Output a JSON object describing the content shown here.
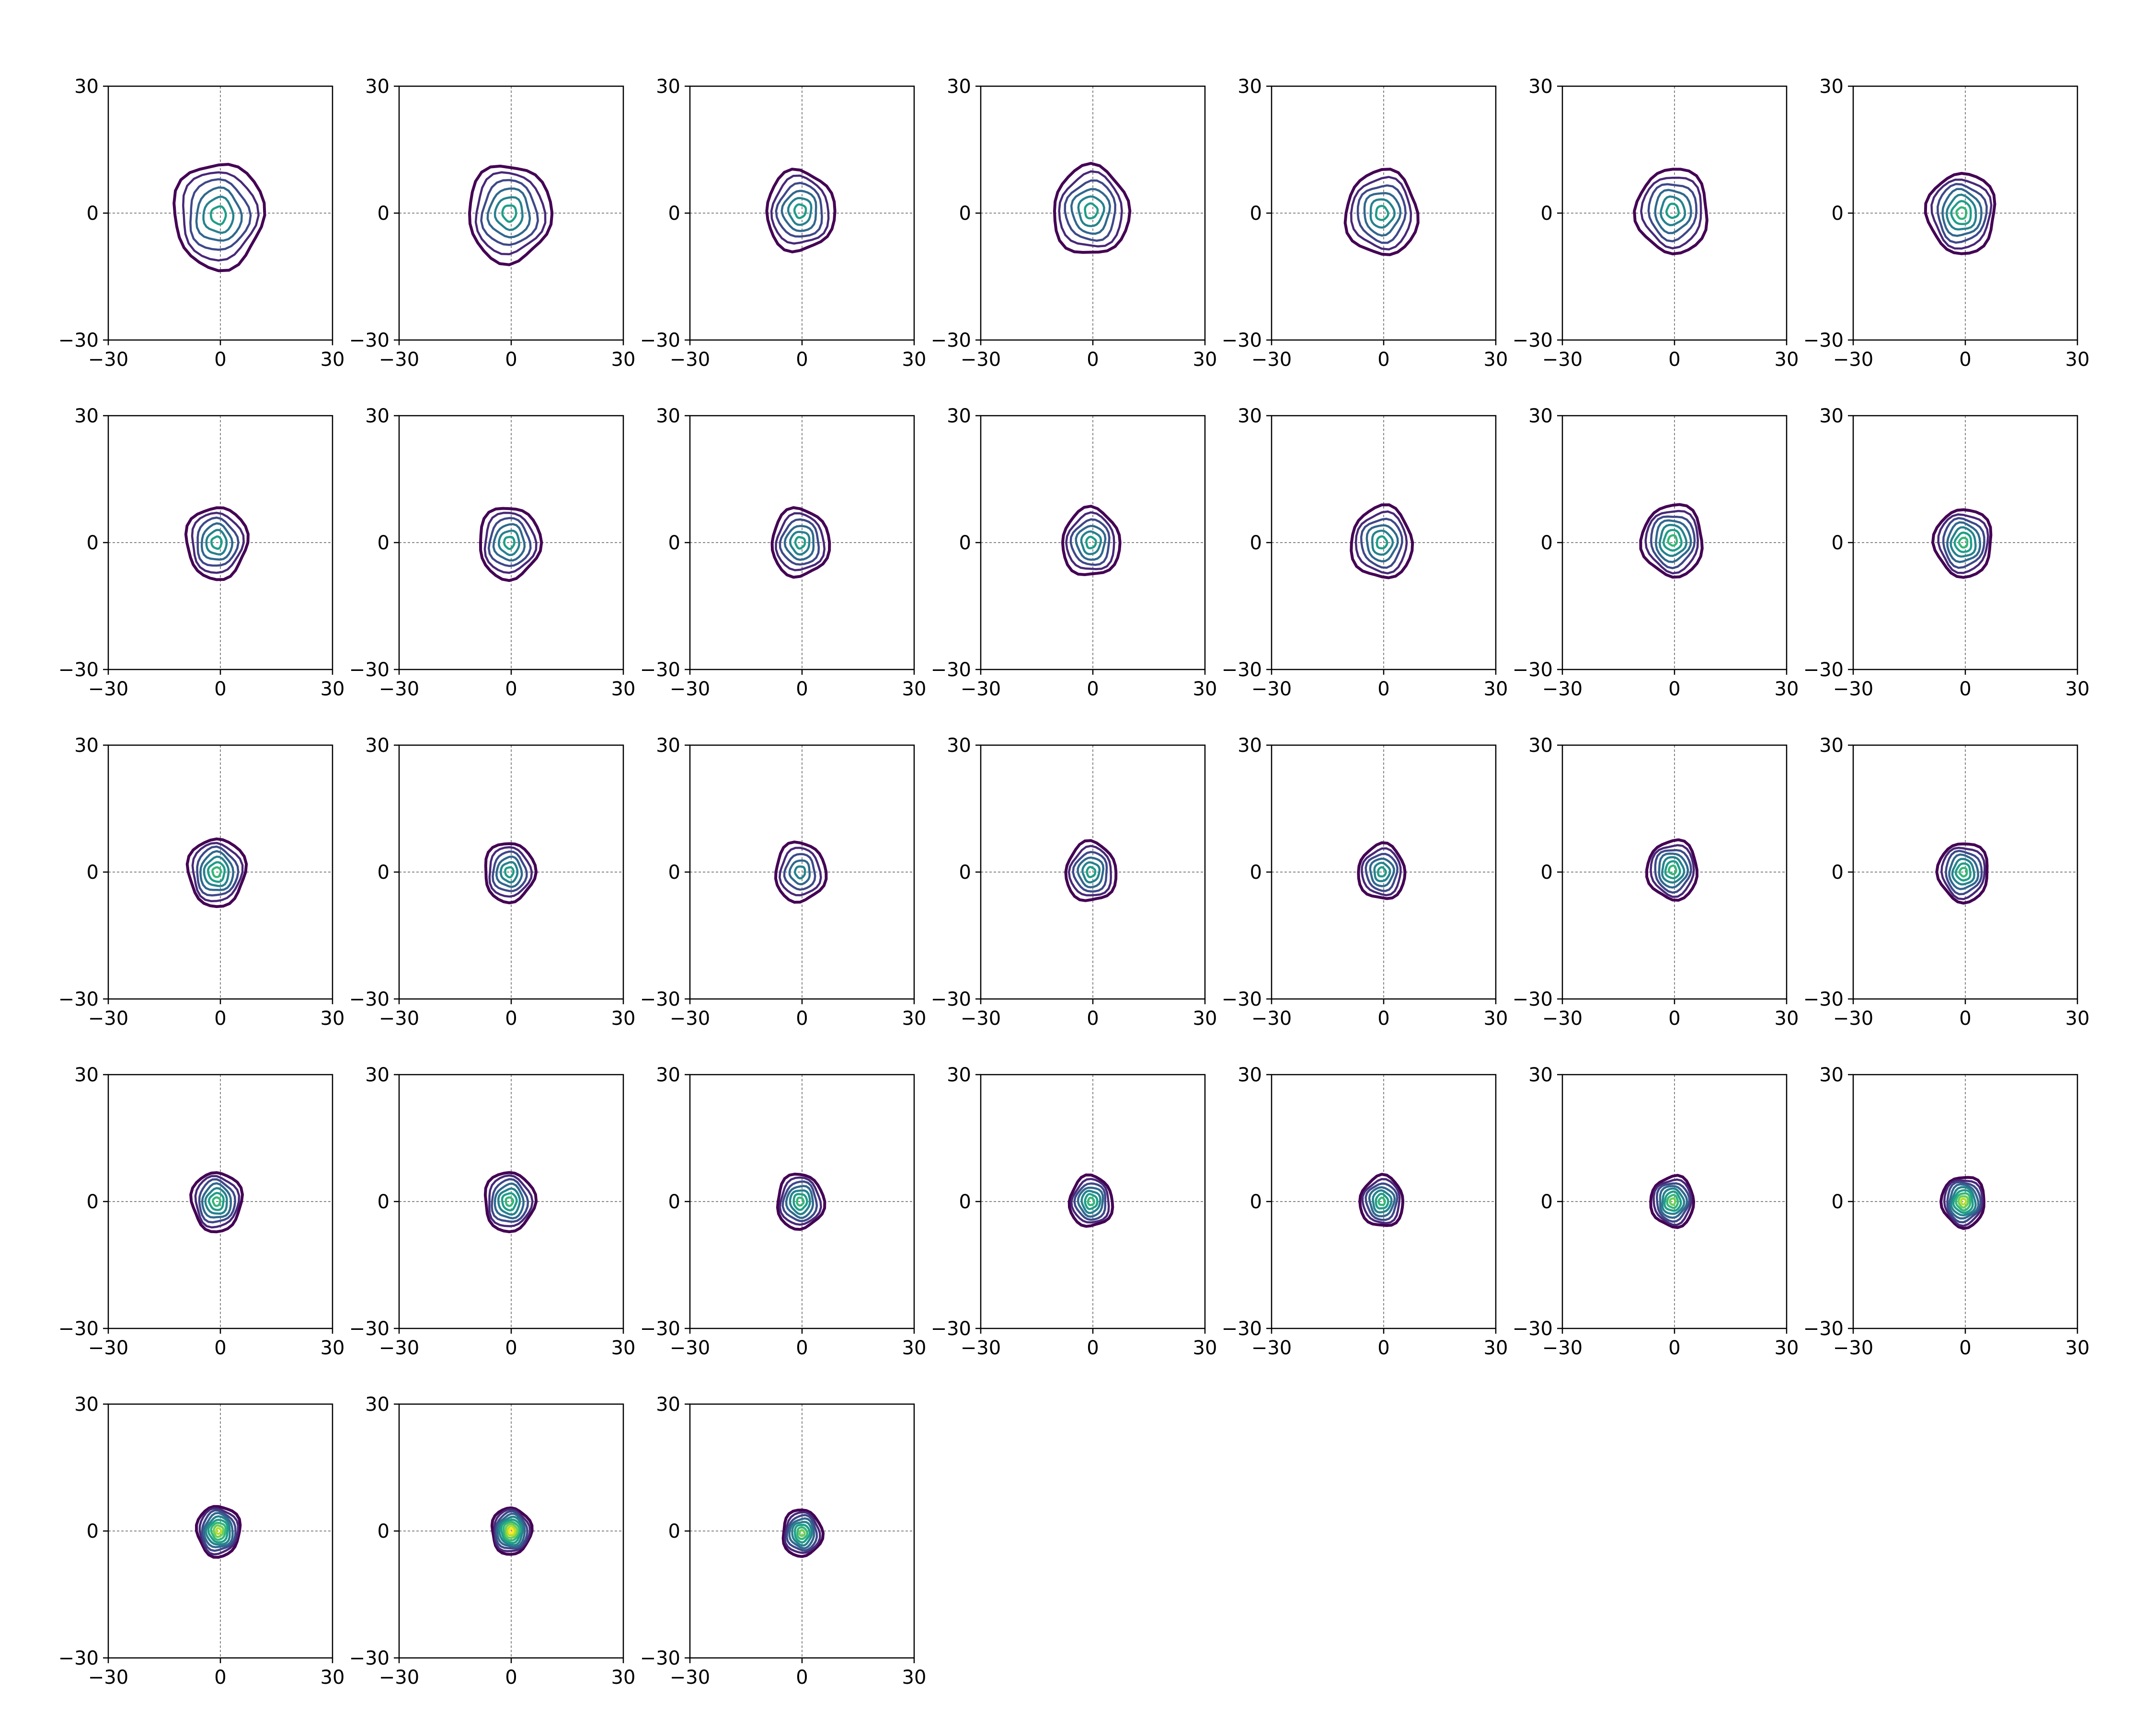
{
  "chart_data": {
    "type": "contour",
    "layout": {
      "rows": 5,
      "cols": 7,
      "panel_count": 31
    },
    "axes": {
      "xlim": [
        -30,
        30
      ],
      "ylim": [
        -30,
        30
      ],
      "xticks": [
        "−30",
        "0",
        "30"
      ],
      "yticks": [
        "30",
        "0",
        "−30"
      ],
      "reference_lines": {
        "x": 0,
        "y": 0,
        "style": "dashed",
        "color": "#888888"
      }
    },
    "colors": {
      "frame": "#000000",
      "contour_palette": [
        "#440154",
        "#482878",
        "#3e4989",
        "#31688e",
        "#26828e",
        "#1f9e89",
        "#35b779",
        "#6ece58",
        "#b5de2b",
        "#fde725"
      ]
    },
    "panels": [
      {
        "cx": -0.5,
        "cy": -0.5,
        "r": 12.5,
        "levels": 6
      },
      {
        "cx": -0.5,
        "cy": 0.0,
        "r": 11.5,
        "levels": 6
      },
      {
        "cx": -0.5,
        "cy": 0.5,
        "r": 9.5,
        "levels": 6
      },
      {
        "cx": -0.5,
        "cy": 0.5,
        "r": 10.5,
        "levels": 6
      },
      {
        "cx": -0.5,
        "cy": 0.0,
        "r": 10.0,
        "levels": 6
      },
      {
        "cx": -0.5,
        "cy": 0.5,
        "r": 10.0,
        "levels": 6
      },
      {
        "cx": -1.0,
        "cy": 0.0,
        "r": 9.5,
        "levels": 7
      },
      {
        "cx": -1.0,
        "cy": 0.0,
        "r": 8.5,
        "levels": 6
      },
      {
        "cx": -0.5,
        "cy": 0.0,
        "r": 8.5,
        "levels": 6
      },
      {
        "cx": -0.5,
        "cy": 0.0,
        "r": 8.0,
        "levels": 6
      },
      {
        "cx": -0.5,
        "cy": 0.0,
        "r": 8.0,
        "levels": 6
      },
      {
        "cx": -0.5,
        "cy": 0.0,
        "r": 8.5,
        "levels": 6
      },
      {
        "cx": -0.5,
        "cy": 0.5,
        "r": 8.5,
        "levels": 7
      },
      {
        "cx": -0.5,
        "cy": 0.0,
        "r": 8.0,
        "levels": 7
      },
      {
        "cx": -1.0,
        "cy": 0.0,
        "r": 8.0,
        "levels": 7
      },
      {
        "cx": -0.5,
        "cy": 0.0,
        "r": 7.0,
        "levels": 6
      },
      {
        "cx": -0.5,
        "cy": 0.0,
        "r": 7.0,
        "levels": 5
      },
      {
        "cx": -0.5,
        "cy": 0.0,
        "r": 7.0,
        "levels": 6
      },
      {
        "cx": -0.5,
        "cy": 0.0,
        "r": 6.5,
        "levels": 6
      },
      {
        "cx": -0.5,
        "cy": 0.5,
        "r": 7.0,
        "levels": 7
      },
      {
        "cx": -0.5,
        "cy": 0.0,
        "r": 7.0,
        "levels": 7
      },
      {
        "cx": -1.0,
        "cy": 0.0,
        "r": 7.0,
        "levels": 7
      },
      {
        "cx": -0.5,
        "cy": 0.0,
        "r": 7.0,
        "levels": 7
      },
      {
        "cx": -0.5,
        "cy": 0.0,
        "r": 6.5,
        "levels": 7
      },
      {
        "cx": -0.5,
        "cy": 0.0,
        "r": 6.0,
        "levels": 7
      },
      {
        "cx": -0.5,
        "cy": 0.0,
        "r": 6.0,
        "levels": 7
      },
      {
        "cx": -0.5,
        "cy": 0.0,
        "r": 6.0,
        "levels": 8
      },
      {
        "cx": -0.5,
        "cy": 0.0,
        "r": 6.0,
        "levels": 9
      },
      {
        "cx": -0.5,
        "cy": 0.0,
        "r": 6.0,
        "levels": 9
      },
      {
        "cx": 0.0,
        "cy": 0.0,
        "r": 5.5,
        "levels": 10
      },
      {
        "cx": 0.0,
        "cy": -0.5,
        "r": 5.5,
        "levels": 8
      }
    ]
  }
}
